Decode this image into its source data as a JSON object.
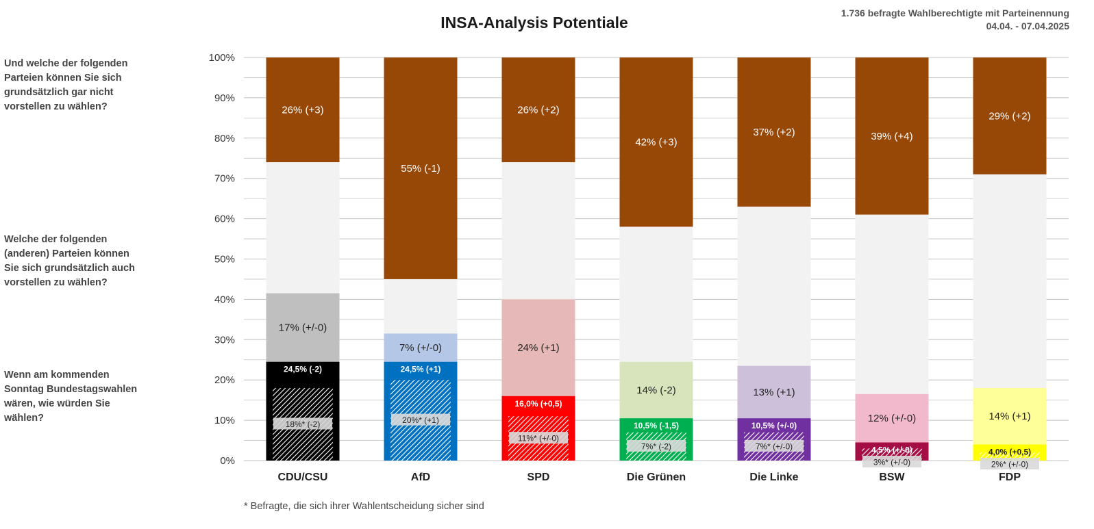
{
  "title": "INSA-Analysis Potentiale",
  "meta": {
    "respondents": "1.736 befragte Wahlberechtigte mit Parteinennung",
    "period": "04.04. - 07.04.2025"
  },
  "questions": {
    "never": "Und welche der folgenden Parteien können Sie sich grundsätzlich gar nicht vorstellen zu wählen?",
    "could": "Welche der folgenden (anderen) Parteien können Sie sich grundsätzlich auch vorstellen zu wählen?",
    "vote": "Wenn am kommenden Sonntag Bundestagswahlen wären, wie würden Sie wählen?"
  },
  "footnote": "* Befragte, die sich ihrer Wahlentscheidung sicher sind",
  "colors": {
    "never": "#974706",
    "neutral": "#f2f2f2",
    "grid": "#c0c0c0",
    "hatch": "#ffffff"
  },
  "chart_data": {
    "type": "bar",
    "stacked": true,
    "ylim": [
      0,
      100
    ],
    "yticks": [
      "0%",
      "10%",
      "20%",
      "30%",
      "40%",
      "50%",
      "60%",
      "70%",
      "80%",
      "90%",
      "100%"
    ],
    "grid": true,
    "categories": [
      "CDU/CSU",
      "AfD",
      "SPD",
      "Die Grünen",
      "Die Linke",
      "BSW",
      "FDP"
    ],
    "parties": [
      {
        "name": "CDU/CSU",
        "vote": 24.5,
        "vote_label": "24,5% (-2)",
        "sure": 18,
        "sure_label": "18%* (-2)",
        "potential": 17,
        "potential_label": "17% (+/-0)",
        "never": 26,
        "never_label": "26% (+3)",
        "vote_color": "#000000",
        "potential_color": "#bfbfbf",
        "vote_text_color": "#ffffff",
        "potential_text_color": "#222222"
      },
      {
        "name": "AfD",
        "vote": 24.5,
        "vote_label": "24,5% (+1)",
        "sure": 20,
        "sure_label": "20%* (+1)",
        "potential": 7,
        "potential_label": "7% (+/-0)",
        "never": 55,
        "never_label": "55% (-1)",
        "vote_color": "#0070c0",
        "potential_color": "#b4c7e7",
        "vote_text_color": "#ffffff",
        "potential_text_color": "#222222"
      },
      {
        "name": "SPD",
        "vote": 16.0,
        "vote_label": "16,0% (+0,5)",
        "sure": 11,
        "sure_label": "11%* (+/-0)",
        "potential": 24,
        "potential_label": "24% (+1)",
        "never": 26,
        "never_label": "26% (+2)",
        "vote_color": "#ff0000",
        "potential_color": "#e6b8b7",
        "vote_text_color": "#ffffff",
        "potential_text_color": "#222222"
      },
      {
        "name": "Die Grünen",
        "vote": 10.5,
        "vote_label": "10,5% (-1,5)",
        "sure": 7,
        "sure_label": "7%* (-2)",
        "potential": 14,
        "potential_label": "14% (-2)",
        "never": 42,
        "never_label": "42% (+3)",
        "vote_color": "#00b050",
        "potential_color": "#d8e4bc",
        "vote_text_color": "#ffffff",
        "potential_text_color": "#222222"
      },
      {
        "name": "Die Linke",
        "vote": 10.5,
        "vote_label": "10,5% (+/-0)",
        "sure": 7,
        "sure_label": "7%* (+/-0)",
        "potential": 13,
        "potential_label": "13% (+1)",
        "never": 37,
        "never_label": "37% (+2)",
        "vote_color": "#7030a0",
        "potential_color": "#ccc0da",
        "vote_text_color": "#ffffff",
        "potential_text_color": "#222222"
      },
      {
        "name": "BSW",
        "vote": 4.5,
        "vote_label": "4,5% (+/-0)",
        "sure": 3,
        "sure_label": "3%* (+/-0)",
        "potential": 12,
        "potential_label": "12% (+/-0)",
        "never": 39,
        "never_label": "39% (+4)",
        "vote_color": "#a50e45",
        "potential_color": "#f2b8cc",
        "vote_text_color": "#ffffff",
        "potential_text_color": "#222222"
      },
      {
        "name": "FDP",
        "vote": 4.0,
        "vote_label": "4,0% (+0,5)",
        "sure": 2,
        "sure_label": "2%* (+/-0)",
        "potential": 14,
        "potential_label": "14% (+1)",
        "never": 29,
        "never_label": "29% (+2)",
        "vote_color": "#ffff00",
        "potential_color": "#ffff99",
        "vote_text_color": "#222222",
        "potential_text_color": "#222222"
      }
    ]
  }
}
